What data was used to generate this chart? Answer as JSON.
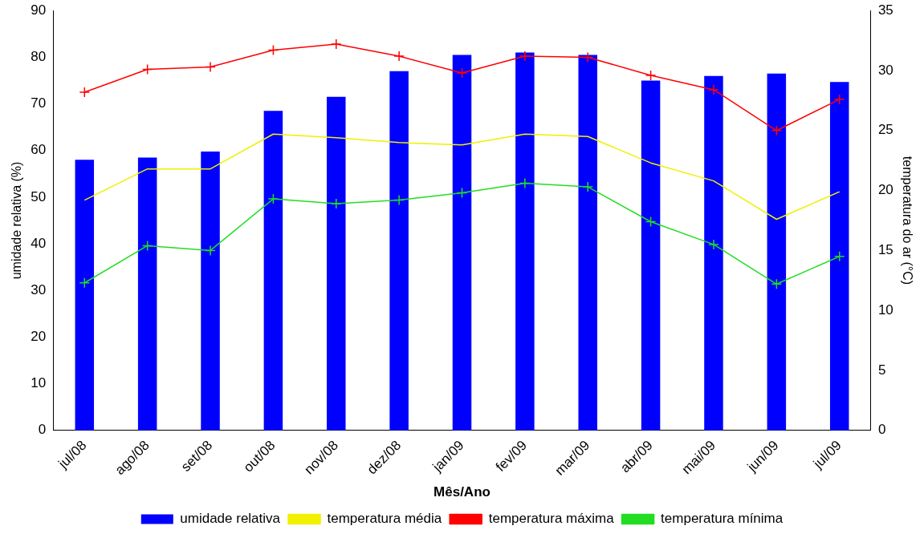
{
  "chart_data": {
    "type": "bar",
    "xlabel": "Mês/Ano",
    "ylabel": "umidade relativa (%)",
    "y2label": "temperatura do ar (°C)",
    "categories": [
      "jul/08",
      "ago/08",
      "set/08",
      "out/08",
      "nov/08",
      "dez/08",
      "jan/09",
      "fev/09",
      "mar/09",
      "abr/09",
      "mai/09",
      "jun/09",
      "jul/09"
    ],
    "series": [
      {
        "name": "umidade relativa",
        "color": "#0000ff",
        "values": [
          58,
          58.5,
          59.8,
          68.5,
          71.5,
          77,
          80.5,
          81,
          80.5,
          75,
          76,
          76.5,
          74.7
        ]
      },
      {
        "name": "temperatura média",
        "type": "line",
        "axis": "y2",
        "color": "#f0f000",
        "marker": "none",
        "values": [
          19.2,
          21.8,
          21.8,
          24.7,
          24.4,
          24.0,
          23.8,
          24.7,
          24.5,
          22.3,
          20.8,
          17.6,
          19.9
        ]
      },
      {
        "name": "temperatura máxima",
        "type": "line",
        "axis": "y2",
        "color": "#ff0000",
        "marker": "cross",
        "values": [
          28.2,
          30.1,
          30.3,
          31.7,
          32.2,
          31.2,
          29.8,
          31.2,
          31.1,
          29.6,
          28.4,
          25.0,
          27.6
        ]
      },
      {
        "name": "temperatura mínima",
        "type": "line",
        "axis": "y2",
        "color": "#22dd22",
        "marker": "cross",
        "values": [
          12.3,
          15.4,
          15.0,
          19.3,
          18.9,
          19.2,
          19.8,
          20.6,
          20.3,
          17.4,
          15.5,
          12.2,
          14.5
        ]
      }
    ],
    "ylim": [
      0,
      90
    ],
    "yticks": [
      0,
      10,
      20,
      30,
      40,
      50,
      60,
      70,
      80,
      90
    ],
    "y2lim": [
      0,
      35
    ],
    "y2ticks": [
      0,
      5,
      10,
      15,
      20,
      25,
      30,
      35
    ],
    "grid": false,
    "legend": "bottom"
  }
}
